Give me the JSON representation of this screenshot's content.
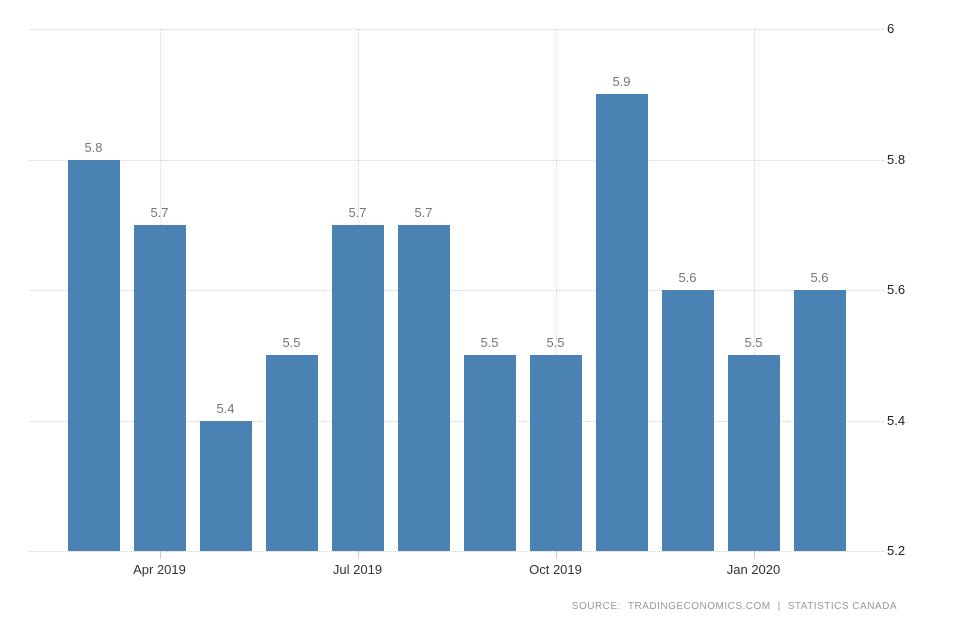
{
  "chart_data": {
    "type": "bar",
    "title": "",
    "values": [
      5.8,
      5.7,
      5.4,
      5.5,
      5.7,
      5.7,
      5.5,
      5.5,
      5.9,
      5.6,
      5.5,
      5.6
    ],
    "value_labels": [
      "5.8",
      "5.7",
      "5.4",
      "5.5",
      "5.7",
      "5.7",
      "5.5",
      "5.5",
      "5.9",
      "5.6",
      "5.5",
      "5.6"
    ],
    "xticks": [
      {
        "label": "Apr 2019",
        "bar_index": 1
      },
      {
        "label": "Jul 2019",
        "bar_index": 4
      },
      {
        "label": "Oct 2019",
        "bar_index": 7
      },
      {
        "label": "Jan 2020",
        "bar_index": 10
      }
    ],
    "yticks": [
      {
        "value": 6,
        "label": "6"
      },
      {
        "value": 5.8,
        "label": "5.8"
      },
      {
        "value": 5.6,
        "label": "5.6"
      },
      {
        "value": 5.4,
        "label": "5.4"
      },
      {
        "value": 5.2,
        "label": "5.2"
      }
    ],
    "ylim": [
      5.2,
      6
    ],
    "xlabel": "",
    "ylabel": "",
    "grid": "dotted",
    "legend": "none",
    "bar_color": "#4a82b4"
  },
  "colors": {
    "background": "#ffffff",
    "bar": "#4a82b4",
    "h_gridline": "#d2d2d2",
    "v_gridline": "#d8d8d8",
    "tick_mark": "#cccccc",
    "value_label": "#757575",
    "x_axis_label": "#333333",
    "y_axis_label": "#222222",
    "source_text": "#999999"
  },
  "source": {
    "prefix": "SOURCE:",
    "site": "TRADINGECONOMICS.COM",
    "separator": "|",
    "provider": "STATISTICS CANADA"
  }
}
